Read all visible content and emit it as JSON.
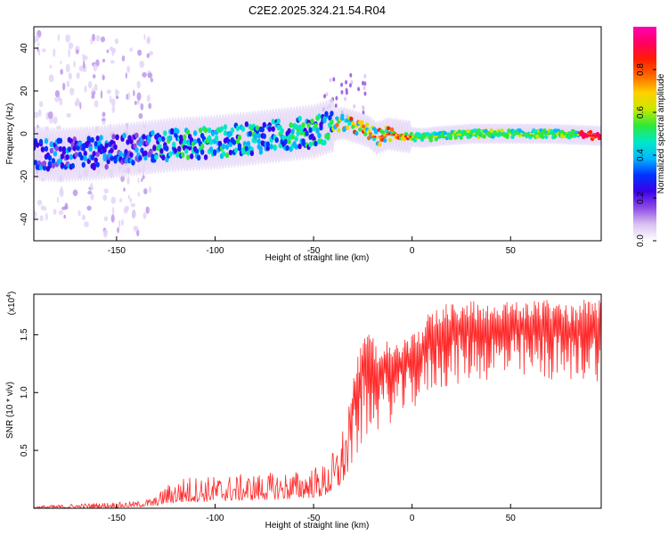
{
  "title": "C2E2.2025.324.21.54.R04",
  "chart_data": [
    {
      "type": "heatmap",
      "name": "spectrogram",
      "xlabel": "Height of straight line (km)",
      "ylabel": "Frequency (Hz)",
      "xlim": [
        -192,
        96
      ],
      "ylim": [
        -50,
        50
      ],
      "x_ticks": [
        -150,
        -100,
        -50,
        0,
        50
      ],
      "y_ticks": [
        -40,
        -20,
        0,
        20,
        40
      ],
      "ridge": {
        "x": [
          -192,
          -180,
          -160,
          -140,
          -120,
          -100,
          -80,
          -60,
          -50,
          -40,
          -35,
          -28,
          -22,
          -18,
          -12,
          -5,
          5,
          15,
          30,
          50,
          70,
          96
        ],
        "freq_hz": [
          -9,
          -10,
          -9,
          -7,
          -5,
          -4,
          -2,
          0,
          1,
          4,
          5,
          3,
          1,
          -2,
          0,
          -1,
          -2,
          -1,
          0,
          0,
          0,
          -1
        ]
      },
      "colorbar": {
        "label": "Normalized spectral amplitude",
        "ticks": [
          0.0,
          0.2,
          0.4,
          0.6,
          0.8
        ],
        "tick_labels": [
          "0.0",
          "0.2",
          "0.4",
          "0.6",
          "0.8"
        ],
        "range": [
          0,
          1
        ],
        "colors": [
          "#ffffff",
          "#d8c2f0",
          "#8e4be6",
          "#3a00e8",
          "#0033ff",
          "#00b8ff",
          "#00e8c8",
          "#2ee83a",
          "#c8e800",
          "#ffd000",
          "#ff6a00",
          "#ff1e00",
          "#ff0060",
          "#ff00b0"
        ]
      }
    },
    {
      "type": "line",
      "name": "snr",
      "xlabel": "Height of straight line (km)",
      "ylabel": "SNR (10 * v/v)",
      "y_scale_label": "(x10",
      "y_scale_exp": "4",
      "xlim": [
        -192,
        96
      ],
      "ylim": [
        0,
        1.85
      ],
      "x_ticks": [
        -150,
        -100,
        -50,
        0,
        50
      ],
      "y_ticks": [
        0.5,
        1.0,
        1.5
      ],
      "y_tick_labels": [
        "0.5",
        "1.0",
        "1.5"
      ],
      "color": "#ff2a2a",
      "envelope": {
        "x": [
          -192,
          -170,
          -140,
          -130,
          -125,
          -115,
          -100,
          -80,
          -60,
          -45,
          -38,
          -32,
          -28,
          -25,
          -22,
          -18,
          -14,
          -10,
          -5,
          0,
          5,
          10,
          20,
          30,
          40,
          50,
          60,
          70,
          80,
          90,
          96
        ],
        "low": [
          0.0,
          0.0,
          0.01,
          0.02,
          0.04,
          0.05,
          0.06,
          0.07,
          0.08,
          0.1,
          0.15,
          0.3,
          0.45,
          0.55,
          0.6,
          0.65,
          0.7,
          0.75,
          0.8,
          0.85,
          0.9,
          1.0,
          1.05,
          1.1,
          1.1,
          1.1,
          1.1,
          1.1,
          1.1,
          1.1,
          1.1
        ],
        "high": [
          0.02,
          0.04,
          0.06,
          0.1,
          0.2,
          0.28,
          0.28,
          0.3,
          0.32,
          0.38,
          0.55,
          0.9,
          1.3,
          1.55,
          1.5,
          1.45,
          1.5,
          1.4,
          1.45,
          1.5,
          1.6,
          1.75,
          1.78,
          1.8,
          1.8,
          1.78,
          1.8,
          1.8,
          1.75,
          1.85,
          1.8
        ]
      }
    }
  ]
}
